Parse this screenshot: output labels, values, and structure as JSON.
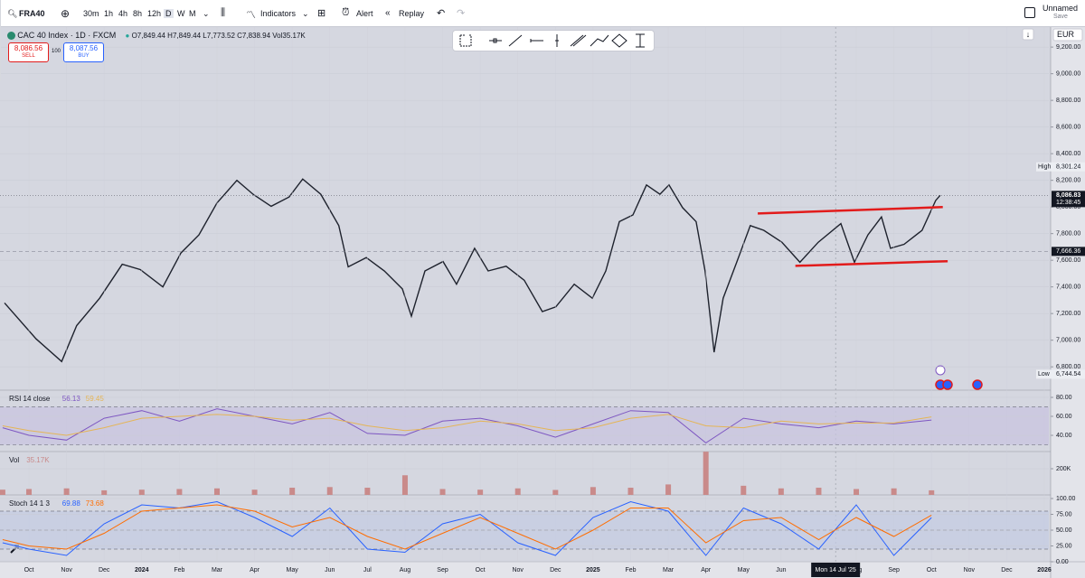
{
  "toolbar": {
    "symbol": "FRA40",
    "intervals": [
      "30m",
      "1h",
      "4h",
      "8h",
      "12h",
      "D",
      "W",
      "M"
    ],
    "indicators": "Indicators",
    "alert": "Alert",
    "replay": "Replay",
    "layout_name": "Unnamed",
    "save": "Save"
  },
  "legend": {
    "title": "CAC 40 Index · 1D · FXCM",
    "ohlc": "O7,849.44 H7,849.44 L7,773.52 C7,838.94 Vol35.17K",
    "sell_price": "8,086.56",
    "sell": "SELL",
    "spread": "100",
    "buy_price": "8,087.56",
    "buy": "BUY",
    "currency": "EUR"
  },
  "chart_data": [
    {
      "type": "line",
      "x": [
        -0.65,
        0.19,
        0.87,
        1.27,
        1.88,
        2.48,
        2.96,
        3.56,
        4.04,
        4.52,
        5.0,
        5.53,
        5.96,
        6.44,
        6.92,
        7.28,
        7.76,
        8.24,
        8.49,
        8.97,
        9.45,
        9.93,
        10.17,
        10.53,
        11.01,
        11.37,
        11.85,
        12.21,
        12.69,
        13.17,
        13.65,
        14.01,
        14.5,
        14.98,
        15.34,
        15.7,
        16.06,
        16.42,
        16.78,
        17.02,
        17.38,
        17.74,
        17.98,
        18.22,
        18.46,
        18.82,
        19.18,
        19.54,
        20.02,
        20.5,
        20.99,
        21.59,
        21.95,
        22.31,
        22.67,
        22.91,
        23.27,
        23.75,
        24.11,
        24.23
      ],
      "series": [
        {
          "color": "#1e222d",
          "values": [
            7280,
            7010,
            6840,
            7110,
            7315,
            7570,
            7530,
            7400,
            7655,
            7790,
            8030,
            8200,
            8095,
            8005,
            8075,
            8210,
            8095,
            7860,
            7550,
            7620,
            7520,
            7385,
            7180,
            7520,
            7590,
            7420,
            7690,
            7520,
            7555,
            7450,
            7215,
            7250,
            7420,
            7315,
            7520,
            7890,
            7940,
            8165,
            8095,
            8165,
            7995,
            7890,
            7520,
            6910,
            7315,
            7585,
            7860,
            7825,
            7735,
            7585,
            7735,
            7875,
            7585,
            7790,
            7925,
            7690,
            7720,
            7825,
            8048,
            8086.83
          ]
        }
      ],
      "xlim": [
        -0.77,
        27.12
      ],
      "xticks": [
        {
          "value": 0,
          "label": "Oct"
        },
        {
          "value": 1,
          "label": "Nov"
        },
        {
          "value": 2,
          "label": "Dec"
        },
        {
          "value": 3,
          "label": "2024"
        },
        {
          "value": 4,
          "label": "Feb"
        },
        {
          "value": 5,
          "label": "Mar"
        },
        {
          "value": 6,
          "label": "Apr"
        },
        {
          "value": 7,
          "label": "May"
        },
        {
          "value": 8,
          "label": "Jun"
        },
        {
          "value": 9,
          "label": "Jul"
        },
        {
          "value": 10,
          "label": "Aug"
        },
        {
          "value": 11,
          "label": "Sep"
        },
        {
          "value": 12,
          "label": "Oct"
        },
        {
          "value": 13,
          "label": "Nov"
        },
        {
          "value": 14,
          "label": "Dec"
        },
        {
          "value": 15,
          "label": "2025"
        },
        {
          "value": 16,
          "label": "Feb"
        },
        {
          "value": 17,
          "label": "Mar"
        },
        {
          "value": 18,
          "label": "Apr"
        },
        {
          "value": 19,
          "label": "May"
        },
        {
          "value": 20,
          "label": "Jun"
        },
        {
          "value": 22,
          "label": "Aug"
        },
        {
          "value": 23,
          "label": "Sep"
        },
        {
          "value": 24,
          "label": "Oct"
        },
        {
          "value": 25,
          "label": "Nov"
        },
        {
          "value": 26,
          "label": "Dec"
        },
        {
          "value": 27,
          "label": "2026"
        }
      ],
      "ylim": [
        6625,
        9350
      ],
      "yticks": [
        {
          "value": 9200,
          "label": "9,200.00"
        },
        {
          "value": 9000,
          "label": "9,000.00"
        },
        {
          "value": 8800,
          "label": "8,800.00"
        },
        {
          "value": 8600,
          "label": "8,600.00"
        },
        {
          "value": 8400,
          "label": "8,400.00"
        },
        {
          "value": 8200,
          "label": "8,200.00"
        },
        {
          "value": 8000,
          "label": "8,000.00"
        },
        {
          "value": 7800,
          "label": "7,800.00"
        },
        {
          "value": 7600,
          "label": "7,600.00"
        },
        {
          "value": 7400,
          "label": "7,400.00"
        },
        {
          "value": 7200,
          "label": "7,200.00"
        },
        {
          "value": 7000,
          "label": "7,000.00"
        },
        {
          "value": 6800,
          "label": "6,800.00"
        }
      ],
      "high": {
        "label": "High",
        "value": {
          "value": 8301.24,
          "label": "8,301.24"
        }
      },
      "low": {
        "label": "Low",
        "value": {
          "value": 6744.54,
          "label": "6,744.54"
        }
      },
      "last": {
        "value": {
          "value": 8086.83,
          "label": "8,086.83"
        },
        "countdown": "12:38:45"
      },
      "level": {
        "value": 7666.36,
        "label": "7,666.36"
      },
      "crosshair": {
        "x": 21.45,
        "label": "Mon 14 Jul '25"
      },
      "drawings": [
        {
          "color": "#e21b1b",
          "x": [
            19.38,
            24.3
          ],
          "values": [
            7951,
            7999
          ]
        },
        {
          "color": "#e21b1b",
          "x": [
            20.38,
            24.43
          ],
          "values": [
            7558,
            7593
          ]
        }
      ]
    },
    {
      "type": "line",
      "title": "RSI 14 close",
      "x": [
        -0.7,
        0,
        1,
        2,
        3,
        4,
        5,
        6,
        7,
        8,
        9,
        10,
        11,
        12,
        13,
        14,
        15,
        16,
        17,
        18,
        19,
        20,
        21,
        22,
        23,
        24
      ],
      "series": [
        {
          "color": "#7e57c2",
          "values": [
            48,
            40,
            35,
            58,
            66,
            55,
            68,
            60,
            52,
            64,
            42,
            40,
            55,
            58,
            50,
            38,
            52,
            66,
            64,
            32,
            58,
            52,
            48,
            55,
            52,
            56.13
          ]
        },
        {
          "color": "#e5b556",
          "values": [
            50,
            45,
            40,
            48,
            58,
            60,
            62,
            60,
            56,
            58,
            50,
            45,
            48,
            55,
            52,
            45,
            48,
            58,
            62,
            50,
            48,
            55,
            52,
            53,
            53,
            59.45
          ]
        }
      ],
      "ylim": [
        22.9,
        87.6
      ],
      "yticks": [
        {
          "value": 80,
          "label": "80.00"
        },
        {
          "value": 60,
          "label": "60.00"
        },
        {
          "value": 40,
          "label": "40.00"
        }
      ],
      "bands": [
        70,
        30
      ],
      "band_color": "#c8c3e0"
    },
    {
      "type": "bar",
      "title": "Vol",
      "legend_value": "35.17K",
      "x": [
        -0.7,
        0,
        1,
        2,
        3,
        4,
        5,
        6,
        7,
        8,
        9,
        10,
        11,
        12,
        13,
        14,
        15,
        16,
        17,
        18,
        19,
        20,
        21,
        22,
        23,
        24
      ],
      "series": [
        {
          "color": "#c98a8a",
          "values": [
            40000,
            45000,
            50000,
            35000,
            40000,
            45000,
            50000,
            40000,
            55000,
            60000,
            55000,
            150000,
            45000,
            40000,
            50000,
            38000,
            60000,
            55000,
            80000,
            330000,
            70000,
            50000,
            55000,
            45000,
            50000,
            35170
          ]
        }
      ],
      "ylim": [
        0,
        331000
      ],
      "yticks": [
        {
          "value": 200000,
          "label": "200K"
        }
      ]
    },
    {
      "type": "line",
      "title": "Stoch 14 1 3",
      "x": [
        -0.7,
        0,
        1,
        2,
        3,
        4,
        5,
        6,
        7,
        8,
        9,
        10,
        11,
        12,
        13,
        14,
        15,
        16,
        17,
        18,
        19,
        20,
        21,
        22,
        23,
        24
      ],
      "series": [
        {
          "color": "#2962ff",
          "values": [
            30,
            20,
            10,
            60,
            90,
            85,
            95,
            70,
            40,
            85,
            20,
            15,
            60,
            75,
            30,
            10,
            70,
            95,
            80,
            10,
            85,
            60,
            20,
            90,
            10,
            69.88
          ]
        },
        {
          "color": "#ff6d00",
          "values": [
            35,
            25,
            20,
            45,
            80,
            85,
            90,
            80,
            55,
            70,
            40,
            20,
            45,
            70,
            45,
            20,
            50,
            85,
            85,
            30,
            65,
            70,
            35,
            70,
            40,
            73.68
          ]
        }
      ],
      "ylim": [
        0,
        105.7
      ],
      "yticks": [
        {
          "value": 100,
          "label": "100.00"
        },
        {
          "value": 75,
          "label": "75.00"
        },
        {
          "value": 50,
          "label": "50.00"
        },
        {
          "value": 25,
          "label": "25.00"
        },
        {
          "value": 0,
          "label": "0.00"
        }
      ],
      "bands": [
        80,
        50,
        20
      ],
      "band_color": "#c3cce2"
    }
  ]
}
